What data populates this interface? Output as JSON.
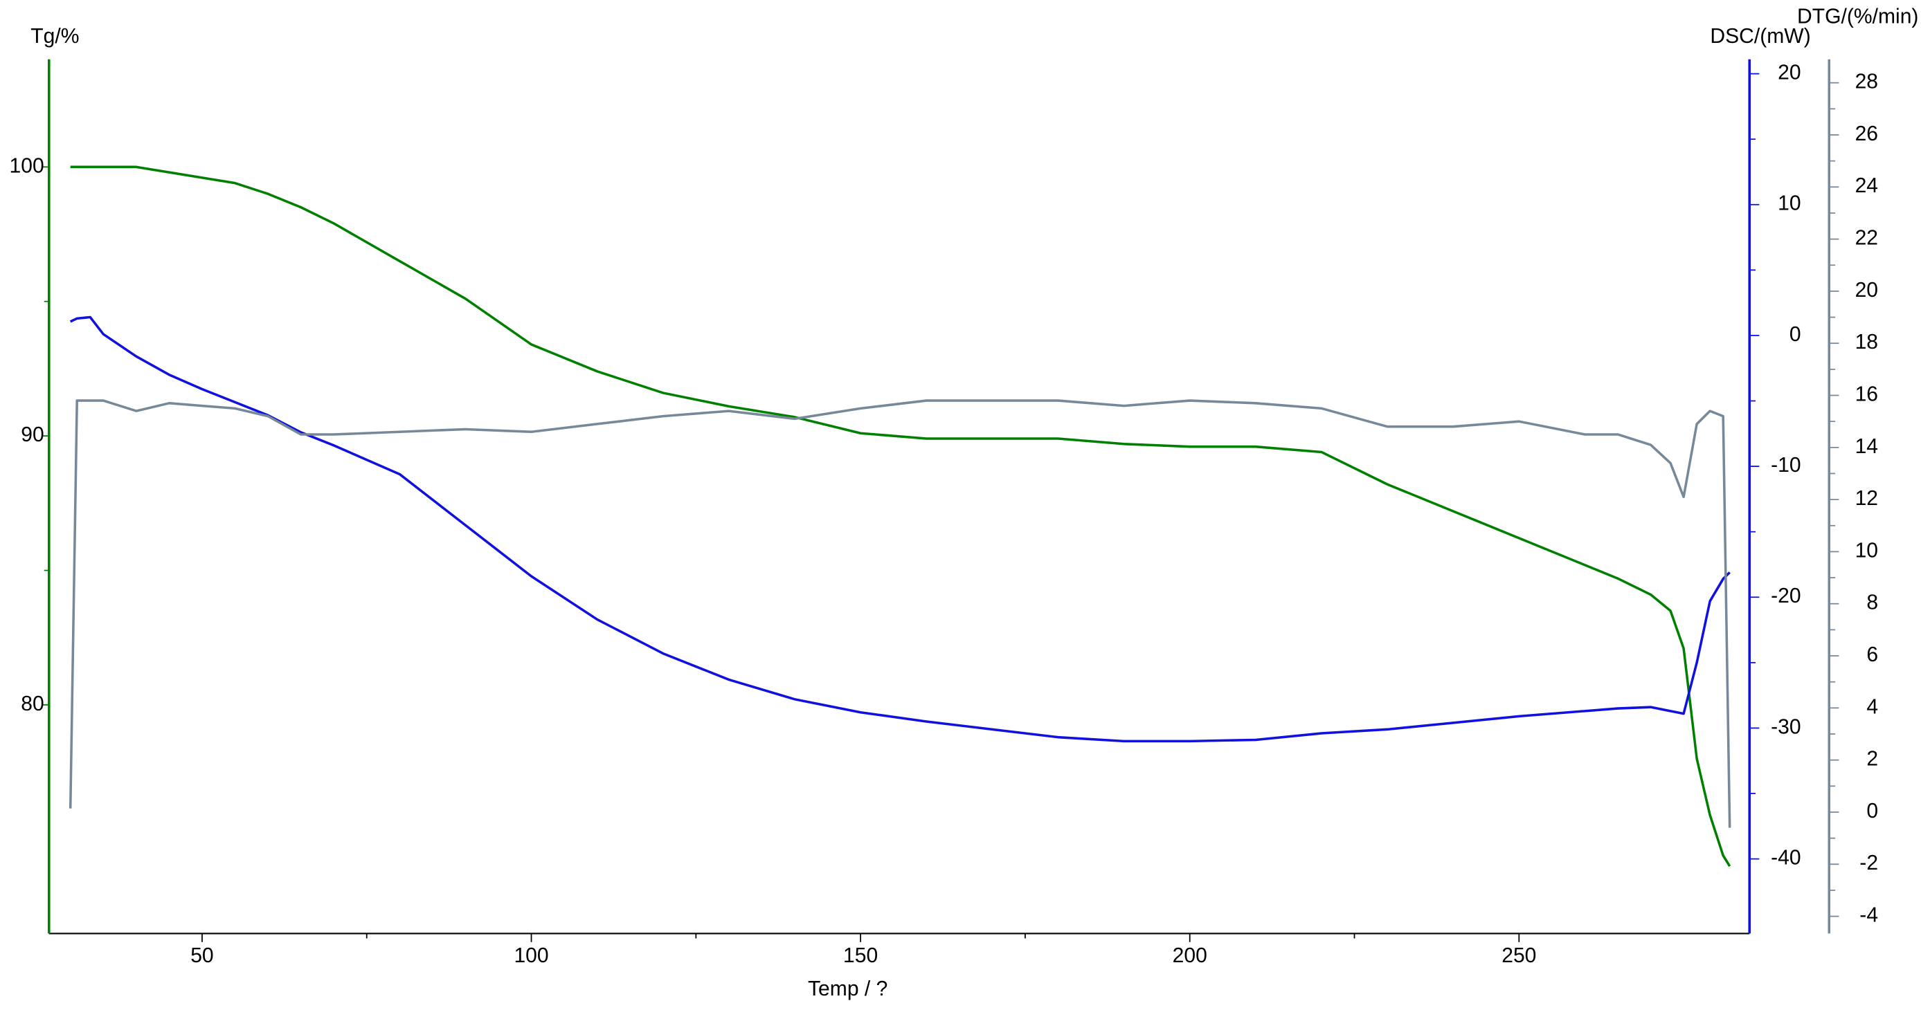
{
  "chart_data": {
    "type": "line",
    "x_label": "Temp / ?",
    "y_label": "Tg/%",
    "y2_label": "DSC/(mW)",
    "y3_label": "DTG/(%/min)",
    "xlim": [
      26.75,
      285
    ],
    "xticks": [
      50,
      100,
      150,
      200,
      250
    ],
    "ylim": [
      71.5,
      104
    ],
    "yticks": [
      80,
      90,
      100
    ],
    "y2lim": [
      -45.7,
      21.1
    ],
    "y2ticks": [
      -40,
      -30,
      -20,
      -10,
      0,
      10,
      20
    ],
    "y3lim": [
      -4.66,
      28.9
    ],
    "y3ticks": [
      -4,
      -2,
      0,
      2,
      4,
      6,
      8,
      10,
      12,
      14,
      16,
      18,
      20,
      22,
      24,
      26,
      28
    ],
    "x": [
      30,
      31,
      33,
      35,
      40,
      45,
      50,
      55,
      60,
      65,
      70,
      80,
      90,
      100,
      110,
      120,
      130,
      140,
      150,
      160,
      170,
      180,
      190,
      200,
      210,
      220,
      230,
      240,
      250,
      260,
      265,
      270,
      273,
      275,
      277,
      279,
      281,
      282
    ],
    "series": [
      {
        "color": "#008000",
        "axis": "y",
        "values": [
          100,
          100,
          100,
          100,
          100,
          99.8,
          99.6,
          99.4,
          99.0,
          98.5,
          97.9,
          96.5,
          95.1,
          93.4,
          92.4,
          91.6,
          91.1,
          90.7,
          90.1,
          89.9,
          89.9,
          89.9,
          89.7,
          89.6,
          89.6,
          89.4,
          88.2,
          87.2,
          86.2,
          85.2,
          84.7,
          84.1,
          83.5,
          82.1,
          78.0,
          75.9,
          74.4,
          74.0
        ]
      },
      {
        "color": "#1010e0",
        "axis": "y2",
        "values": [
          1.06,
          1.3,
          1.4,
          0.1,
          -1.6,
          -3.0,
          -4.1,
          -5.1,
          -6.1,
          -7.4,
          -8.4,
          -10.6,
          -14.5,
          -18.4,
          -21.7,
          -24.3,
          -26.3,
          -27.8,
          -28.8,
          -29.5,
          -30.1,
          -30.7,
          -31.0,
          -31.0,
          -30.9,
          -30.4,
          -30.1,
          -29.6,
          -29.1,
          -28.7,
          -28.5,
          -28.4,
          -28.7,
          -28.9,
          -25.0,
          -20.3,
          -18.6,
          -18.1
        ]
      },
      {
        "color": "#778899",
        "axis": "y3",
        "values": [
          0.14,
          15.8,
          15.8,
          15.8,
          15.4,
          15.7,
          15.6,
          15.5,
          15.2,
          14.5,
          14.5,
          14.6,
          14.7,
          14.6,
          14.9,
          15.2,
          15.4,
          15.1,
          15.5,
          15.8,
          15.8,
          15.8,
          15.6,
          15.8,
          15.7,
          15.5,
          14.8,
          14.8,
          15.0,
          14.5,
          14.5,
          14.1,
          13.4,
          12.1,
          14.9,
          15.4,
          15.2,
          -0.6
        ]
      }
    ]
  }
}
